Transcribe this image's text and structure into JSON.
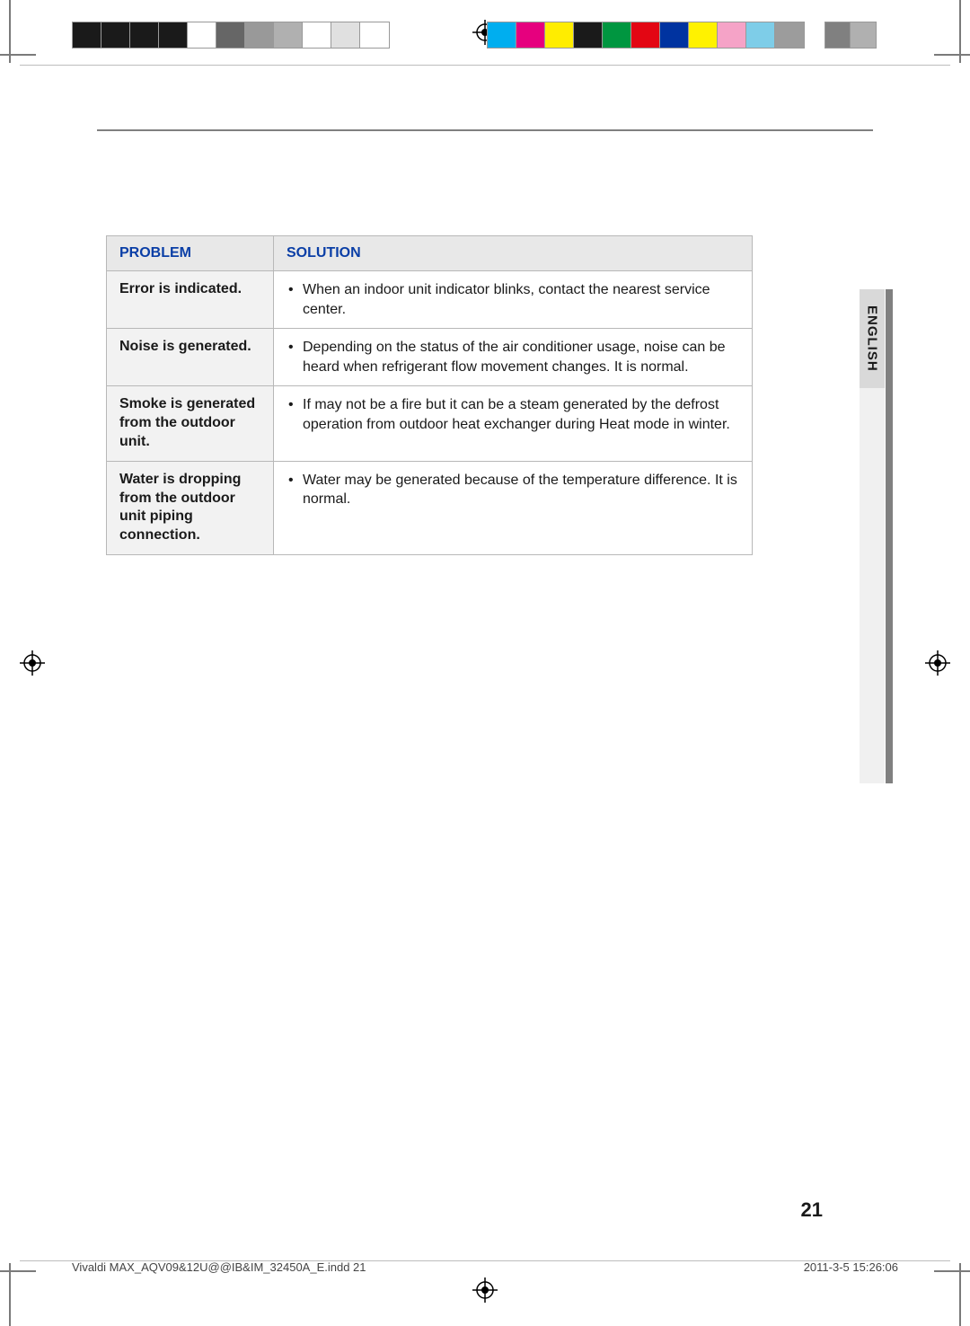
{
  "page": {
    "number": "21",
    "language_tab": "ENGLISH"
  },
  "colors": {
    "header_rule": "#808080",
    "th_bg": "#e8e8e8",
    "th_text": "#0a3ea6",
    "problem_bg": "#f2f2f2",
    "border": "#b8b8b8",
    "side_tab_bg": "#d9d9d9",
    "side_bar_dark": "#808080",
    "side_bar_light": "#f0f0f0"
  },
  "print_bars": {
    "left_swatches": [
      "#1a1a1a",
      "#1a1a1a",
      "#1a1a1a",
      "#1a1a1a",
      "#ffffff",
      "#666666",
      "#999999",
      "#b0b0b0",
      "#ffffff",
      "#e0e0e0",
      "#ffffff"
    ],
    "right_swatches": [
      "#00aeef",
      "#e6007e",
      "#ffed00",
      "#1a1a1a",
      "#009640",
      "#e30613",
      "#0033a0",
      "#fff200",
      "#f5a3c7",
      "#7ecde8",
      "#9c9c9c"
    ],
    "gray_swatches": [
      "#808080",
      "#b0b0b0"
    ]
  },
  "table": {
    "headers": {
      "problem": "PROBLEM",
      "solution": "SOLUTION"
    },
    "rows": [
      {
        "problem": "Error is indicated.",
        "solution": "When an indoor unit indicator blinks, contact the nearest service center."
      },
      {
        "problem": "Noise is generated.",
        "solution": "Depending on the status of the air conditioner usage, noise can be heard when refrigerant flow movement changes. It is normal."
      },
      {
        "problem": "Smoke is generated from the outdoor unit.",
        "solution": "If may not be a fire but it can be a steam generated by the defrost operation from outdoor heat exchanger during Heat mode in winter."
      },
      {
        "problem": "Water is dropping from the outdoor unit piping connection.",
        "solution": "Water may be generated because of the temperature difference. It is normal."
      }
    ]
  },
  "footer": {
    "doc": "Vivaldi MAX_AQV09&12U@@IB&IM_32450A_E.indd   21",
    "timestamp": "2011-3-5   15:26:06"
  }
}
